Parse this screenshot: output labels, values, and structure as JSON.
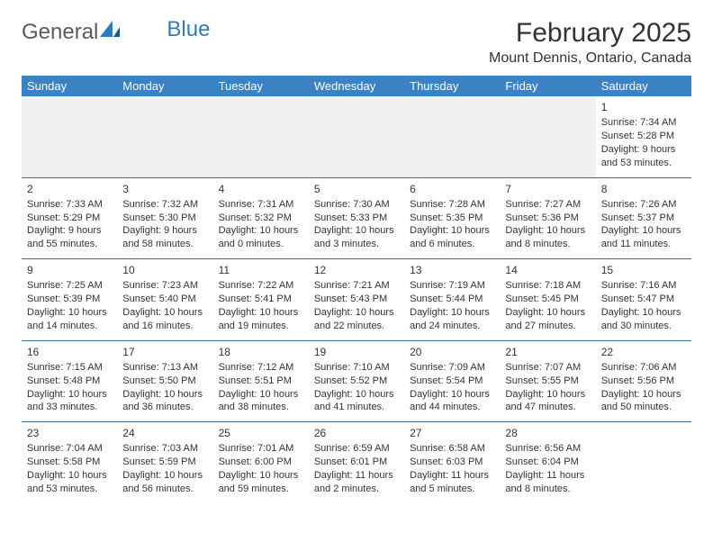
{
  "logo": {
    "text1": "General",
    "text2": "Blue"
  },
  "title": "February 2025",
  "location": "Mount Dennis, Ontario, Canada",
  "colors": {
    "header_bg": "#3a82c4",
    "header_fg": "#ffffff",
    "row_border": "#3a6a9a",
    "empty_bg": "#f0f0f0",
    "logo_blue": "#2d7cc1"
  },
  "weekdays": [
    "Sunday",
    "Monday",
    "Tuesday",
    "Wednesday",
    "Thursday",
    "Friday",
    "Saturday"
  ],
  "weeks": [
    [
      null,
      null,
      null,
      null,
      null,
      null,
      {
        "n": "1",
        "sr": "Sunrise: 7:34 AM",
        "ss": "Sunset: 5:28 PM",
        "dl": "Daylight: 9 hours and 53 minutes."
      }
    ],
    [
      {
        "n": "2",
        "sr": "Sunrise: 7:33 AM",
        "ss": "Sunset: 5:29 PM",
        "dl": "Daylight: 9 hours and 55 minutes."
      },
      {
        "n": "3",
        "sr": "Sunrise: 7:32 AM",
        "ss": "Sunset: 5:30 PM",
        "dl": "Daylight: 9 hours and 58 minutes."
      },
      {
        "n": "4",
        "sr": "Sunrise: 7:31 AM",
        "ss": "Sunset: 5:32 PM",
        "dl": "Daylight: 10 hours and 0 minutes."
      },
      {
        "n": "5",
        "sr": "Sunrise: 7:30 AM",
        "ss": "Sunset: 5:33 PM",
        "dl": "Daylight: 10 hours and 3 minutes."
      },
      {
        "n": "6",
        "sr": "Sunrise: 7:28 AM",
        "ss": "Sunset: 5:35 PM",
        "dl": "Daylight: 10 hours and 6 minutes."
      },
      {
        "n": "7",
        "sr": "Sunrise: 7:27 AM",
        "ss": "Sunset: 5:36 PM",
        "dl": "Daylight: 10 hours and 8 minutes."
      },
      {
        "n": "8",
        "sr": "Sunrise: 7:26 AM",
        "ss": "Sunset: 5:37 PM",
        "dl": "Daylight: 10 hours and 11 minutes."
      }
    ],
    [
      {
        "n": "9",
        "sr": "Sunrise: 7:25 AM",
        "ss": "Sunset: 5:39 PM",
        "dl": "Daylight: 10 hours and 14 minutes."
      },
      {
        "n": "10",
        "sr": "Sunrise: 7:23 AM",
        "ss": "Sunset: 5:40 PM",
        "dl": "Daylight: 10 hours and 16 minutes."
      },
      {
        "n": "11",
        "sr": "Sunrise: 7:22 AM",
        "ss": "Sunset: 5:41 PM",
        "dl": "Daylight: 10 hours and 19 minutes."
      },
      {
        "n": "12",
        "sr": "Sunrise: 7:21 AM",
        "ss": "Sunset: 5:43 PM",
        "dl": "Daylight: 10 hours and 22 minutes."
      },
      {
        "n": "13",
        "sr": "Sunrise: 7:19 AM",
        "ss": "Sunset: 5:44 PM",
        "dl": "Daylight: 10 hours and 24 minutes."
      },
      {
        "n": "14",
        "sr": "Sunrise: 7:18 AM",
        "ss": "Sunset: 5:45 PM",
        "dl": "Daylight: 10 hours and 27 minutes."
      },
      {
        "n": "15",
        "sr": "Sunrise: 7:16 AM",
        "ss": "Sunset: 5:47 PM",
        "dl": "Daylight: 10 hours and 30 minutes."
      }
    ],
    [
      {
        "n": "16",
        "sr": "Sunrise: 7:15 AM",
        "ss": "Sunset: 5:48 PM",
        "dl": "Daylight: 10 hours and 33 minutes."
      },
      {
        "n": "17",
        "sr": "Sunrise: 7:13 AM",
        "ss": "Sunset: 5:50 PM",
        "dl": "Daylight: 10 hours and 36 minutes."
      },
      {
        "n": "18",
        "sr": "Sunrise: 7:12 AM",
        "ss": "Sunset: 5:51 PM",
        "dl": "Daylight: 10 hours and 38 minutes."
      },
      {
        "n": "19",
        "sr": "Sunrise: 7:10 AM",
        "ss": "Sunset: 5:52 PM",
        "dl": "Daylight: 10 hours and 41 minutes."
      },
      {
        "n": "20",
        "sr": "Sunrise: 7:09 AM",
        "ss": "Sunset: 5:54 PM",
        "dl": "Daylight: 10 hours and 44 minutes."
      },
      {
        "n": "21",
        "sr": "Sunrise: 7:07 AM",
        "ss": "Sunset: 5:55 PM",
        "dl": "Daylight: 10 hours and 47 minutes."
      },
      {
        "n": "22",
        "sr": "Sunrise: 7:06 AM",
        "ss": "Sunset: 5:56 PM",
        "dl": "Daylight: 10 hours and 50 minutes."
      }
    ],
    [
      {
        "n": "23",
        "sr": "Sunrise: 7:04 AM",
        "ss": "Sunset: 5:58 PM",
        "dl": "Daylight: 10 hours and 53 minutes."
      },
      {
        "n": "24",
        "sr": "Sunrise: 7:03 AM",
        "ss": "Sunset: 5:59 PM",
        "dl": "Daylight: 10 hours and 56 minutes."
      },
      {
        "n": "25",
        "sr": "Sunrise: 7:01 AM",
        "ss": "Sunset: 6:00 PM",
        "dl": "Daylight: 10 hours and 59 minutes."
      },
      {
        "n": "26",
        "sr": "Sunrise: 6:59 AM",
        "ss": "Sunset: 6:01 PM",
        "dl": "Daylight: 11 hours and 2 minutes."
      },
      {
        "n": "27",
        "sr": "Sunrise: 6:58 AM",
        "ss": "Sunset: 6:03 PM",
        "dl": "Daylight: 11 hours and 5 minutes."
      },
      {
        "n": "28",
        "sr": "Sunrise: 6:56 AM",
        "ss": "Sunset: 6:04 PM",
        "dl": "Daylight: 11 hours and 8 minutes."
      },
      null
    ]
  ]
}
